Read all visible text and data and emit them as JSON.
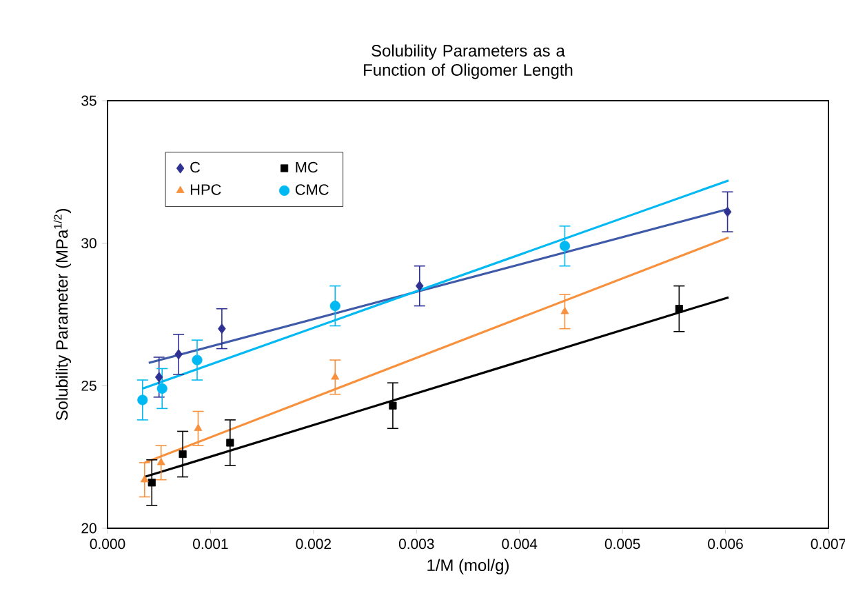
{
  "chart_data": {
    "type": "scatter",
    "title": "Solubility Parameters as a Function of Oligomer Length",
    "xlabel": "1/M  (mol/g)",
    "ylabel": "Solubility Parameter (MPa$^{1/2}$)",
    "xlim": [
      0,
      0.007
    ],
    "ylim": [
      20,
      35
    ],
    "xticks": [
      {
        "value": 0,
        "label": "0.000"
      },
      {
        "value": 0.001,
        "label": "0.001"
      },
      {
        "value": 0.002,
        "label": "0.002"
      },
      {
        "value": 0.003,
        "label": "0.003"
      },
      {
        "value": 0.004,
        "label": "0.004"
      },
      {
        "value": 0.005,
        "label": "0.005"
      },
      {
        "value": 0.006,
        "label": "0.006"
      },
      {
        "value": 0.007,
        "label": "0.007"
      }
    ],
    "yticks": [
      20,
      25,
      30,
      35
    ],
    "legend": "top left",
    "grid": false,
    "series": [
      {
        "type": "line",
        "color": "#3f5aa8",
        "marker": "none",
        "x": [
          0.0004,
          0.00603
        ],
        "values": [
          25.8,
          31.2
        ]
      },
      {
        "type": "line",
        "color": "#000000",
        "marker": "none",
        "x": [
          0.00036,
          0.00603
        ],
        "values": [
          21.8,
          28.1
        ]
      },
      {
        "type": "line",
        "color": "#f7913d",
        "marker": "none",
        "x": [
          0.00036,
          0.00603
        ],
        "values": [
          22.3,
          30.2
        ]
      },
      {
        "type": "line",
        "color": "#00b9f2",
        "marker": "none",
        "x": [
          0.00034,
          0.00603
        ],
        "values": [
          24.9,
          32.2
        ]
      },
      {
        "name": "C",
        "color": "#2e3192",
        "marker": "diamond",
        "x": [
          0.0005,
          0.00069,
          0.00111,
          0.00303,
          0.00602
        ],
        "values": [
          25.3,
          26.1,
          27.0,
          28.5,
          31.1
        ],
        "errors": [
          0.7,
          0.7,
          0.7,
          0.7,
          0.7
        ]
      },
      {
        "name": "MC",
        "color": "#000000",
        "marker": "square",
        "x": [
          0.00043,
          0.00073,
          0.00119,
          0.00277,
          0.00555
        ],
        "values": [
          21.6,
          22.6,
          23.0,
          24.3,
          27.7
        ],
        "errors": [
          0.8,
          0.8,
          0.8,
          0.8,
          0.8
        ]
      },
      {
        "name": "HPC",
        "color": "#f7913d",
        "marker": "triangle",
        "x": [
          0.00036,
          0.00052,
          0.00088,
          0.00221,
          0.00444
        ],
        "values": [
          21.7,
          22.3,
          23.5,
          25.3,
          27.6
        ],
        "errors": [
          0.6,
          0.6,
          0.6,
          0.6,
          0.6
        ]
      },
      {
        "name": "CMC",
        "color": "#00b9f2",
        "marker": "circle",
        "x": [
          0.00034,
          0.00053,
          0.00087,
          0.00221,
          0.00444
        ],
        "values": [
          24.5,
          24.9,
          25.9,
          27.8,
          29.9
        ],
        "errors": [
          0.7,
          0.7,
          0.7,
          0.7,
          0.7
        ]
      }
    ]
  }
}
